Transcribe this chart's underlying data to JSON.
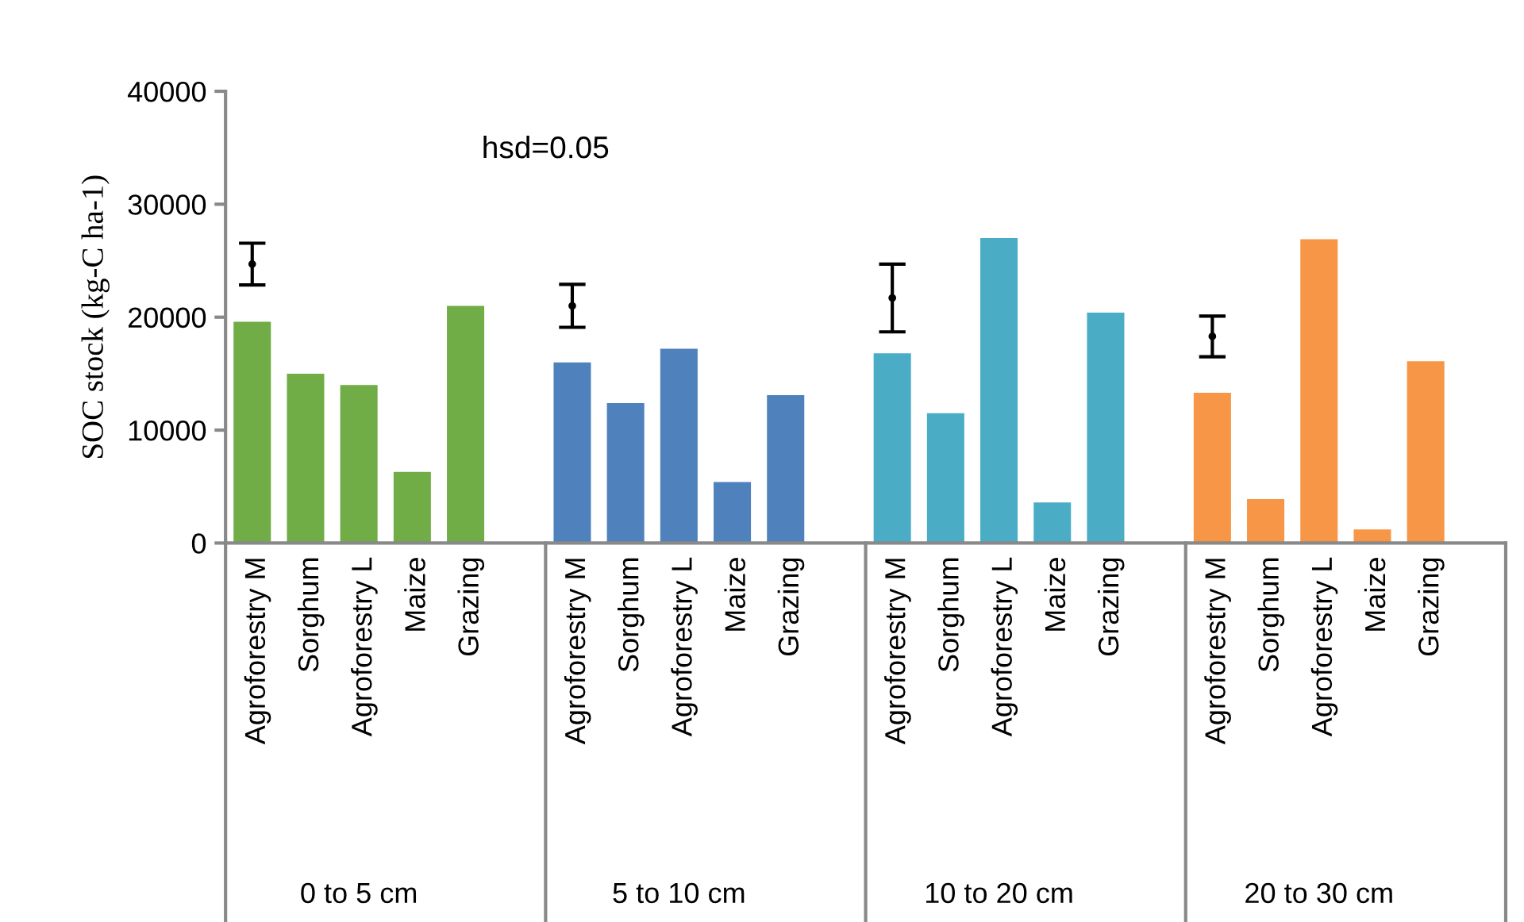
{
  "chart_data": {
    "type": "bar",
    "ylabel": "SOC stock (kg-C ha-1)",
    "annotations": [
      "hsd=0.05",
      "0 to 5 cm",
      "5 to 10 cm",
      "10 to 20 cm",
      "20 to 30 cm"
    ],
    "categories": [
      "Agroforestry M",
      "Sorghum",
      "Agroforestry L",
      "Maize",
      "Grazing",
      "Agroforestry M",
      "Sorghum",
      "Agroforestry L",
      "Maize",
      "Grazing",
      "Agroforestry M",
      "Sorghum",
      "Agroforestry L",
      "Maize",
      "Grazing",
      "Agroforestry M",
      "Sorghum",
      "Agroforestry L",
      "Maize",
      "Grazing"
    ],
    "ylim": [
      0,
      40000
    ],
    "yticks": [
      0,
      10000,
      20000,
      30000,
      40000
    ],
    "grid": false,
    "series": [
      {
        "colors": [
          "#70ad47",
          "#70ad47",
          "#70ad47",
          "#70ad47",
          "#70ad47",
          "#4f81bd",
          "#4f81bd",
          "#4f81bd",
          "#4f81bd",
          "#4f81bd",
          "#4bacc6",
          "#4bacc6",
          "#4bacc6",
          "#4bacc6",
          "#4bacc6",
          "#f79646",
          "#f79646",
          "#f79646",
          "#f79646",
          "#f79646"
        ],
        "values": [
          19600,
          15000,
          14000,
          6300,
          21000,
          16000,
          12400,
          17200,
          5400,
          13100,
          16800,
          11500,
          27000,
          3600,
          20400,
          13300,
          3900,
          26900,
          1200,
          16100
        ]
      },
      {
        "type": "scatter",
        "marker": "circle",
        "color": "#000000",
        "values": [
          24700,
          null,
          null,
          null,
          null,
          21000,
          null,
          null,
          null,
          null,
          21700,
          null,
          null,
          null,
          null,
          18300,
          null,
          null,
          null,
          null
        ],
        "errors": [
          1850,
          null,
          null,
          null,
          null,
          1900,
          null,
          null,
          null,
          null,
          3000,
          null,
          null,
          null,
          null,
          1800,
          null,
          null,
          null,
          null
        ]
      }
    ]
  }
}
